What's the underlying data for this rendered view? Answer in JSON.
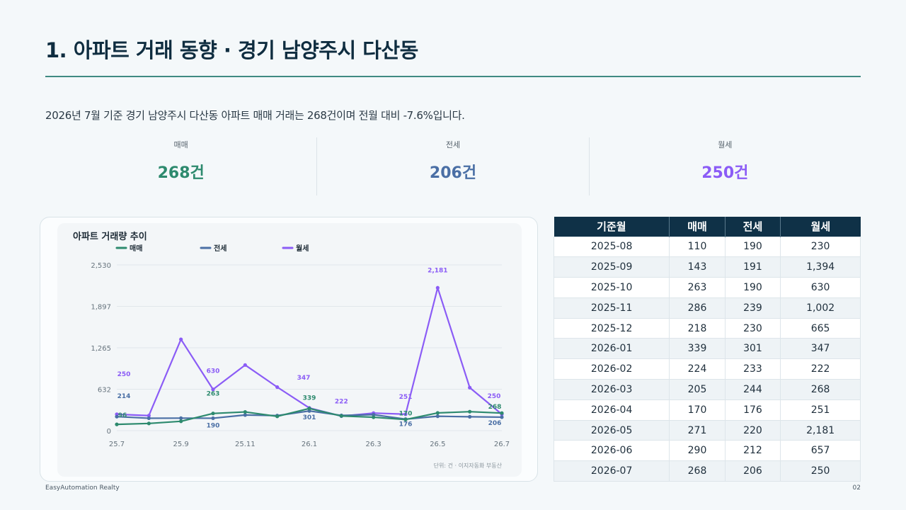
{
  "header": {
    "title": "1. 아파트 거래 동향 · 경기 남양주시 다산동",
    "summary": "2026년 7월 기준 경기 남양주시 다산동 아파트 매매 거래는 268건이며 전월 대비 -7.6%입니다."
  },
  "kpis": [
    {
      "label": "매매",
      "value": "268건",
      "color": "#2d8a6e"
    },
    {
      "label": "전세",
      "value": "206건",
      "color": "#4a6fa5"
    },
    {
      "label": "월세",
      "value": "250건",
      "color": "#8b5cf6"
    }
  ],
  "chart_data": {
    "type": "line",
    "title": "아파트 거래량 추이",
    "x": [
      "25.7",
      "25.8",
      "25.9",
      "25.10",
      "25.11",
      "25.12",
      "26.1",
      "26.2",
      "26.3",
      "26.4",
      "26.5",
      "26.6",
      "26.7"
    ],
    "x_tick_labels": [
      "25.7",
      "25.9",
      "25.11",
      "26.1",
      "26.3",
      "26.5",
      "26.7"
    ],
    "y_ticks": [
      "2,530",
      "1,897",
      "1,265",
      "632",
      "0"
    ],
    "ylim": [
      0,
      2530
    ],
    "series": [
      {
        "name": "매매",
        "color": "#2d8a6e",
        "values": [
          96,
          110,
          143,
          263,
          286,
          218,
          339,
          224,
          205,
          170,
          271,
          290,
          268
        ]
      },
      {
        "name": "전세",
        "color": "#4a6fa5",
        "values": [
          214,
          190,
          191,
          190,
          239,
          230,
          301,
          233,
          244,
          176,
          220,
          212,
          206
        ]
      },
      {
        "name": "월세",
        "color": "#8b5cf6",
        "values": [
          250,
          230,
          1394,
          630,
          1002,
          665,
          347,
          222,
          268,
          251,
          2181,
          657,
          250
        ]
      }
    ],
    "data_labels": [
      {
        "series": 2,
        "index": 0,
        "text": "250",
        "color": "#8b5cf6"
      },
      {
        "series": 1,
        "index": 0,
        "text": "214",
        "color": "#4a6fa5"
      },
      {
        "series": 0,
        "index": 0,
        "text": "96",
        "color": "#2d8a6e"
      },
      {
        "series": 0,
        "index": 3,
        "text": "263",
        "color": "#2d8a6e"
      },
      {
        "series": 1,
        "index": 3,
        "text": "190",
        "color": "#4a6fa5"
      },
      {
        "series": 2,
        "index": 3,
        "text": "630",
        "color": "#8b5cf6"
      },
      {
        "series": 2,
        "index": 6,
        "text": "347",
        "color": "#8b5cf6"
      },
      {
        "series": 0,
        "index": 6,
        "text": "339",
        "color": "#2d8a6e"
      },
      {
        "series": 1,
        "index": 6,
        "text": "301",
        "color": "#4a6fa5"
      },
      {
        "series": 2,
        "index": 7,
        "text": "222",
        "color": "#8b5cf6"
      },
      {
        "series": 2,
        "index": 9,
        "text": "251",
        "color": "#8b5cf6"
      },
      {
        "series": 0,
        "index": 9,
        "text": "170",
        "color": "#2d8a6e"
      },
      {
        "series": 1,
        "index": 9,
        "text": "176",
        "color": "#4a6fa5"
      },
      {
        "series": 2,
        "index": 10,
        "text": "2,181",
        "color": "#8b5cf6"
      },
      {
        "series": 2,
        "index": 12,
        "text": "250",
        "color": "#8b5cf6"
      },
      {
        "series": 0,
        "index": 12,
        "text": "268",
        "color": "#2d8a6e"
      },
      {
        "series": 1,
        "index": 12,
        "text": "206",
        "color": "#4a6fa5"
      }
    ],
    "legend": "top-left",
    "grid": true,
    "source_note": "단위: 건 · 이지자동화 부동산"
  },
  "table": {
    "headers": [
      "기준월",
      "매매",
      "전세",
      "월세"
    ],
    "rows": [
      [
        "2025-08",
        "110",
        "190",
        "230"
      ],
      [
        "2025-09",
        "143",
        "191",
        "1,394"
      ],
      [
        "2025-10",
        "263",
        "190",
        "630"
      ],
      [
        "2025-11",
        "286",
        "239",
        "1,002"
      ],
      [
        "2025-12",
        "218",
        "230",
        "665"
      ],
      [
        "2026-01",
        "339",
        "301",
        "347"
      ],
      [
        "2026-02",
        "224",
        "233",
        "222"
      ],
      [
        "2026-03",
        "205",
        "244",
        "268"
      ],
      [
        "2026-04",
        "170",
        "176",
        "251"
      ],
      [
        "2026-05",
        "271",
        "220",
        "2,181"
      ],
      [
        "2026-06",
        "290",
        "212",
        "657"
      ],
      [
        "2026-07",
        "268",
        "206",
        "250"
      ]
    ]
  },
  "footer": {
    "brand": "EasyAutomation Realty",
    "page": "02"
  }
}
